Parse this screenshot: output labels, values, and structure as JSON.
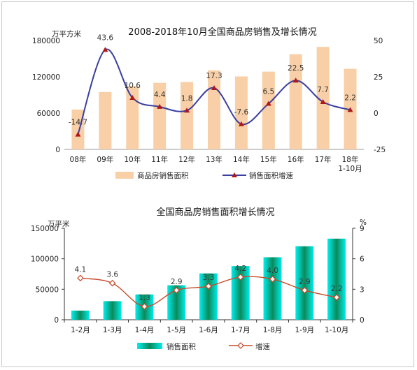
{
  "chart_data": [
    {
      "type": "bar",
      "title": "2008-2018年10月全国商品房销售及增长情况",
      "left_unit": "万平方米",
      "categories": [
        "08年",
        "09年",
        "10年",
        "11年",
        "12年",
        "13年",
        "14年",
        "15年",
        "16年",
        "17年",
        "18年"
      ],
      "category_sublabels": [
        "",
        "",
        "",
        "",
        "",
        "",
        "",
        "",
        "",
        "",
        "1-10月"
      ],
      "ylim_left": [
        0,
        180000
      ],
      "yticks_left": [
        0,
        60000,
        120000,
        180000
      ],
      "ylim_right": [
        -25,
        50
      ],
      "yticks_right": [
        -25,
        0,
        25,
        50
      ],
      "series": [
        {
          "name": "商品房销售面积",
          "type": "bar",
          "axis": "left",
          "values": [
            65900,
            94800,
            104800,
            110000,
            111300,
            130600,
            120600,
            128500,
            157300,
            169400,
            133200
          ]
        },
        {
          "name": "销售面积增速",
          "type": "line",
          "axis": "right",
          "values": [
            -14.7,
            43.6,
            10.6,
            4.4,
            1.8,
            17.3,
            -7.6,
            6.5,
            22.5,
            7.7,
            2.2
          ],
          "labels": [
            "-14.7",
            "43.6",
            "10.6",
            "4.4",
            "1.8",
            "17.3",
            "-7.6",
            "6.5",
            "22.5",
            "7.7",
            "2.2"
          ]
        }
      ],
      "grid": false,
      "legend_position": "bottom",
      "colors": {
        "bar": "#f8cfa6",
        "line": "#3a3fa0",
        "marker": "#b01818"
      }
    },
    {
      "type": "bar",
      "title": "全国商品房销售面积增长情况",
      "left_unit": "万平米",
      "right_unit": "%",
      "categories": [
        "1-2月",
        "1-3月",
        "1-4月",
        "1-5月",
        "1-6月",
        "1-7月",
        "1-8月",
        "1-9月",
        "1-10月"
      ],
      "ylim_left": [
        0,
        150000
      ],
      "yticks_left": [
        0,
        50000,
        100000,
        150000
      ],
      "ylim_right": [
        0,
        9
      ],
      "yticks_right": [
        0,
        3,
        6,
        9
      ],
      "series": [
        {
          "name": "销售面积",
          "type": "bar",
          "axis": "left",
          "values": [
            15000,
            30500,
            41500,
            56500,
            76000,
            88000,
            102500,
            120500,
            133000
          ]
        },
        {
          "name": "增速",
          "type": "line",
          "axis": "right",
          "values": [
            4.1,
            3.6,
            1.3,
            2.9,
            3.3,
            4.2,
            4.0,
            2.9,
            2.2
          ],
          "labels": [
            "4.1",
            "3.6",
            "1.3",
            "2.9",
            "3.3",
            "4.2",
            "4.0",
            "2.9",
            "2.2"
          ]
        }
      ],
      "grid": false,
      "legend_position": "bottom",
      "colors": {
        "bar_edge": "#00eeee",
        "bar_center": "#0a8a5a",
        "line": "#c84a2a",
        "marker_fill": "#ffffff"
      }
    }
  ]
}
